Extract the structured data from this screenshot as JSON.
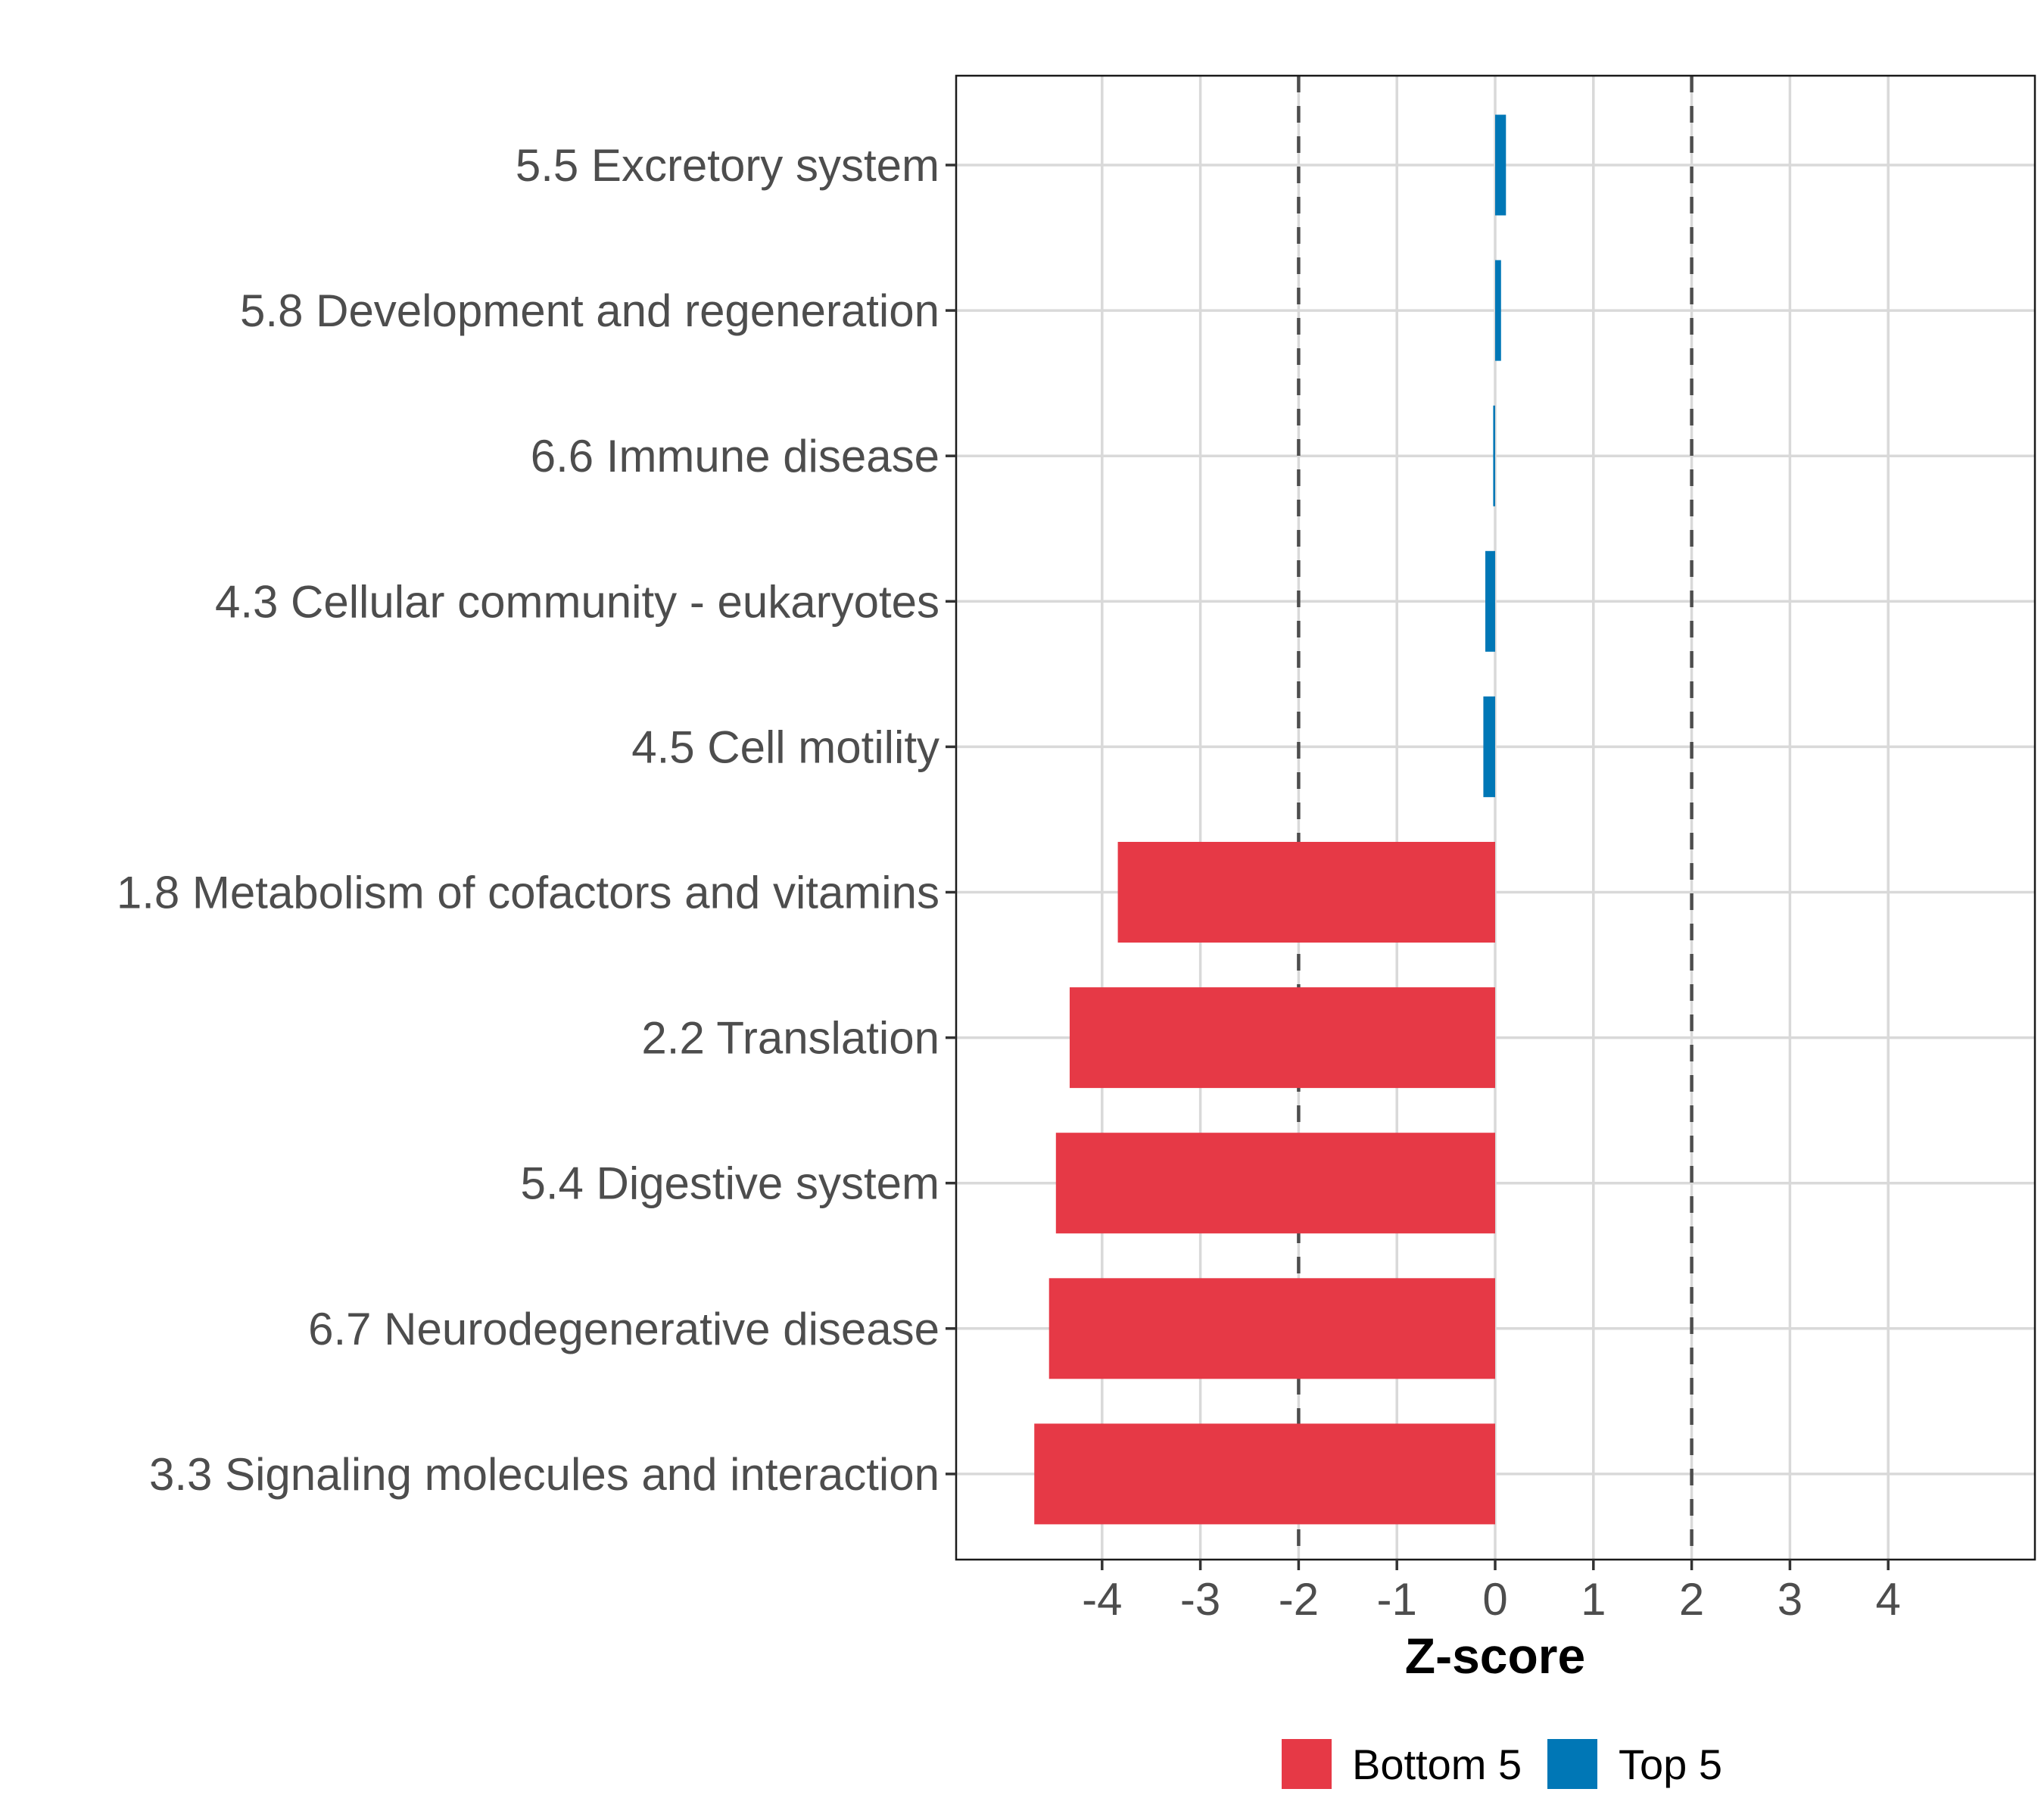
{
  "chart_data": {
    "type": "bar",
    "orientation": "horizontal",
    "title": "",
    "xlabel": "Z-score",
    "ylabel": "",
    "xlim": [
      -5.5,
      5.5
    ],
    "xticks": [
      -4,
      -3,
      -2,
      -1,
      0,
      1,
      2,
      3,
      4
    ],
    "xtick_labels": [
      "-4",
      "-3",
      "-2",
      "-1",
      "0",
      "1",
      "2",
      "3",
      "4"
    ],
    "reference_lines": [
      {
        "x": -2,
        "style": "dashed"
      },
      {
        "x": 2,
        "style": "dashed"
      }
    ],
    "grid": true,
    "legend_position": "bottom",
    "categories": [
      "5.5 Excretory system",
      "5.8 Development and regeneration",
      "6.6 Immune disease",
      "4.3 Cellular community - eukaryotes",
      "4.5 Cell motility",
      "1.8 Metabolism of cofactors and vitamins",
      "2.2 Translation",
      "5.4 Digestive system",
      "6.7 Neurodegenerative disease",
      "3.3 Signaling molecules and interaction"
    ],
    "values": [
      0.11,
      0.06,
      -0.02,
      -0.1,
      -0.12,
      -3.84,
      -4.33,
      -4.47,
      -4.54,
      -4.69
    ],
    "groups": [
      "Top 5",
      "Top 5",
      "Top 5",
      "Top 5",
      "Top 5",
      "Bottom 5",
      "Bottom 5",
      "Bottom 5",
      "Bottom 5",
      "Bottom 5"
    ],
    "series": [
      {
        "name": "Bottom 5",
        "color": "#E63946"
      },
      {
        "name": "Top 5",
        "color": "#0077B6"
      }
    ],
    "legend": [
      {
        "label": "Bottom 5",
        "color": "#E63946"
      },
      {
        "label": "Top 5",
        "color": "#0077B6"
      }
    ]
  }
}
